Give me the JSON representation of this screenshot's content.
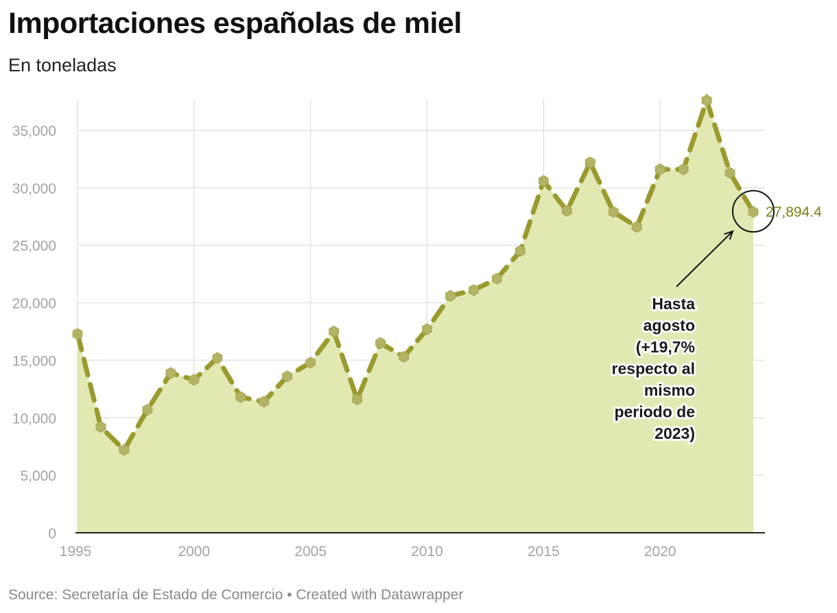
{
  "header": {
    "title": "Importaciones españolas de miel",
    "subtitle": "En toneladas"
  },
  "footer": {
    "source": "Source: Secretaría de Estado de Comercio • Created with Datawrapper"
  },
  "colors": {
    "area": "#e1e8b1",
    "line": "#9a9a2e",
    "marker": "#b3b365",
    "end_label": "#7e7e10"
  },
  "chart_data": {
    "type": "area",
    "title": "Importaciones españolas de miel",
    "subtitle": "En toneladas",
    "xlabel": "",
    "ylabel": "",
    "xlim": [
      1995,
      2024
    ],
    "ylim": [
      0,
      37000
    ],
    "yticks": [
      0,
      5000,
      10000,
      15000,
      20000,
      25000,
      30000,
      35000
    ],
    "ytick_labels": [
      "0",
      "5,000",
      "10,000",
      "15,000",
      "20,000",
      "25,000",
      "30,000",
      "35,000"
    ],
    "xticks": [
      1995,
      2000,
      2005,
      2010,
      2015,
      2020
    ],
    "xtick_labels": [
      "1995",
      "2000",
      "2005",
      "2010",
      "2015",
      "2020"
    ],
    "grid": true,
    "series": [
      {
        "name": "Importaciones",
        "x": [
          1995,
          1996,
          1997,
          1998,
          1999,
          2000,
          2001,
          2002,
          2003,
          2004,
          2005,
          2006,
          2007,
          2008,
          2009,
          2010,
          2011,
          2012,
          2013,
          2014,
          2015,
          2016,
          2017,
          2018,
          2019,
          2020,
          2021,
          2022,
          2023,
          2024
        ],
        "values": [
          17300,
          9200,
          7200,
          10700,
          13900,
          13300,
          15200,
          11800,
          11400,
          13600,
          14800,
          17500,
          11600,
          16500,
          15300,
          17700,
          20600,
          21100,
          22100,
          24500,
          30600,
          28000,
          32200,
          27900,
          26600,
          31600,
          31600,
          37600,
          31300,
          27894.4
        ]
      }
    ],
    "end_label": "27,894.4",
    "annotation": {
      "lines": [
        "Hasta",
        "agosto",
        "(+19,7%",
        "respecto al",
        "mismo",
        "periodo de",
        "2023)"
      ]
    }
  }
}
